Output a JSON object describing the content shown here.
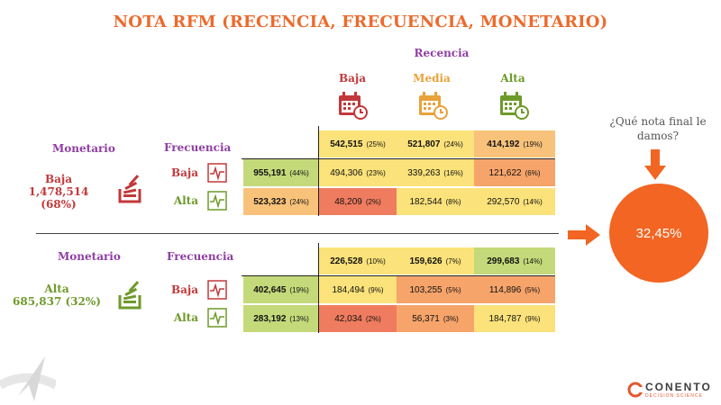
{
  "title": "NOTA RFM (RECENCIA, FRECUENCIA, MONETARIO)",
  "recencia": {
    "label": "Recencia",
    "levels": [
      {
        "name": "Baja",
        "color": "#c2383a"
      },
      {
        "name": "Media",
        "color": "#e8a23a"
      },
      {
        "name": "Alta",
        "color": "#6e9a2a"
      }
    ]
  },
  "headers": {
    "monetario": "Monetario",
    "frecuencia": "Frecuencia"
  },
  "segments": [
    {
      "monetario_name": "Baja",
      "monetario_value": "1,478,514",
      "monetario_pct": "(68%)",
      "recencia_totals": [
        {
          "value": "542,515",
          "pct": "(25%)"
        },
        {
          "value": "521,807",
          "pct": "(24%)"
        },
        {
          "value": "414,192",
          "pct": "(19%)"
        }
      ],
      "rows": [
        {
          "label": "Baja",
          "total": "955,191",
          "total_pct": "(44%)",
          "cells": [
            {
              "value": "494,306",
              "pct": "(23%)"
            },
            {
              "value": "339,263",
              "pct": "(16%)"
            },
            {
              "value": "121,622",
              "pct": "(6%)"
            }
          ]
        },
        {
          "label": "Alta",
          "total": "523,323",
          "total_pct": "(24%)",
          "cells": [
            {
              "value": "48,209",
              "pct": "(2%)"
            },
            {
              "value": "182,544",
              "pct": "(8%)"
            },
            {
              "value": "292,570",
              "pct": "(14%)"
            }
          ]
        }
      ]
    },
    {
      "monetario_name": "Alta",
      "monetario_value": "685,837",
      "monetario_pct": "(32%)",
      "recencia_totals": [
        {
          "value": "226,528",
          "pct": "(10%)"
        },
        {
          "value": "159,626",
          "pct": "(7%)"
        },
        {
          "value": "299,683",
          "pct": "(14%)"
        }
      ],
      "rows": [
        {
          "label": "Baja",
          "total": "402,645",
          "total_pct": "(19%)",
          "cells": [
            {
              "value": "184,494",
              "pct": "(9%)"
            },
            {
              "value": "103,255",
              "pct": "(5%)"
            },
            {
              "value": "114,896",
              "pct": "(5%)"
            }
          ]
        },
        {
          "label": "Alta",
          "total": "283,192",
          "total_pct": "(13%)",
          "cells": [
            {
              "value": "42,034",
              "pct": "(2%)"
            },
            {
              "value": "56,371",
              "pct": "(3%)"
            },
            {
              "value": "184,787",
              "pct": "(9%)"
            }
          ]
        }
      ]
    }
  ],
  "question": "¿Qué nota final le damos?",
  "result": "32,45%",
  "logo": {
    "name": "CONENTO",
    "tagline": "DECISION SCIENCE"
  },
  "colors": {
    "accent": "#ec6a2c",
    "purple": "#8f3fa3",
    "red": "#c2383a",
    "green": "#6e9a2a",
    "cell_green": "#c4d97a",
    "cell_yellow": "#fbe27a",
    "cell_orange": "#f6a46a",
    "cell_red": "#f07c5f",
    "cell_light_orange": "#f9c27a"
  },
  "icons": [
    "calendar-icon",
    "stack-icon",
    "pulse-icon",
    "arrow-down-icon",
    "arrow-right-icon",
    "logo-icon"
  ]
}
